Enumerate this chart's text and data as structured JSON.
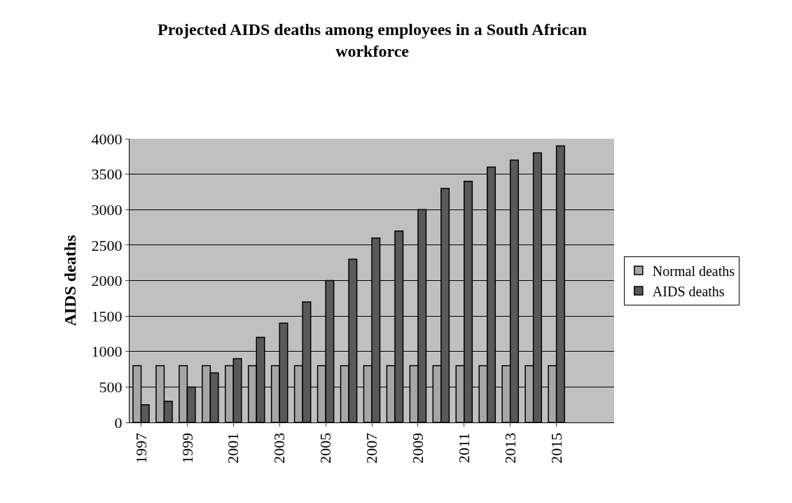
{
  "chart_data": {
    "type": "bar",
    "title": "Projected AIDS deaths among employees in a South African workforce",
    "ylabel": "AIDS deaths",
    "categories": [
      "1997",
      null,
      "1999",
      null,
      "2001",
      null,
      "2003",
      null,
      "2005",
      null,
      "2007",
      null,
      "2009",
      null,
      "2011",
      null,
      "2013",
      null,
      "2015",
      null,
      null
    ],
    "series": [
      {
        "name": "Normal deaths",
        "color": "#a6a6a6",
        "values": [
          800,
          800,
          800,
          800,
          800,
          800,
          800,
          800,
          800,
          800,
          800,
          800,
          800,
          800,
          800,
          800,
          800,
          800,
          800,
          null,
          null
        ]
      },
      {
        "name": "AIDS deaths",
        "color": "#595959",
        "values": [
          250,
          300,
          500,
          700,
          900,
          1200,
          1400,
          1700,
          2000,
          2300,
          2600,
          2700,
          3000,
          3300,
          3400,
          3600,
          3700,
          3800,
          3900,
          null,
          null
        ]
      }
    ],
    "ylim": [
      0,
      4000
    ],
    "yticks": [
      0,
      500,
      1000,
      1500,
      2000,
      2500,
      3000,
      3500,
      4000
    ],
    "grid": "y",
    "legend": "right"
  }
}
